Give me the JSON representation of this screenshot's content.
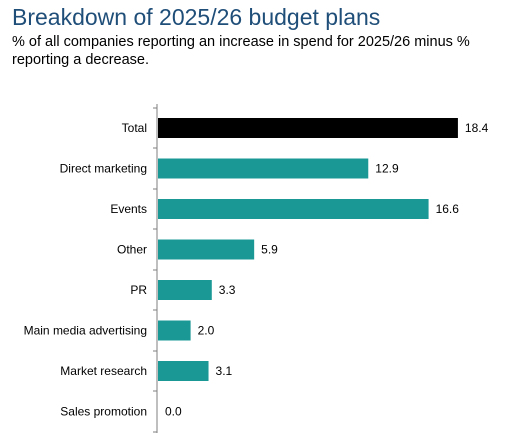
{
  "chart_data": {
    "type": "bar",
    "orientation": "horizontal",
    "title": "Breakdown of 2025/26 budget plans",
    "subtitle": "% of all companies reporting an increase in spend for 2025/26 minus % reporting a decrease.",
    "categories": [
      "Total",
      "Direct marketing",
      "Events",
      "Other",
      "PR",
      "Main media advertising",
      "Market research",
      "Sales promotion"
    ],
    "values": [
      18.4,
      12.9,
      16.6,
      5.9,
      3.3,
      2.0,
      3.1,
      0.0
    ],
    "value_labels": [
      "18.4",
      "12.9",
      "16.6",
      "5.9",
      "3.3",
      "2.0",
      "3.1",
      "0.0"
    ],
    "xlim": [
      0,
      20
    ],
    "grid": false,
    "legend": "none",
    "colors": {
      "highlight": "#000000",
      "bar": "#1a9896",
      "axis": "#7f7f7f",
      "title": "#1f4e79"
    }
  }
}
